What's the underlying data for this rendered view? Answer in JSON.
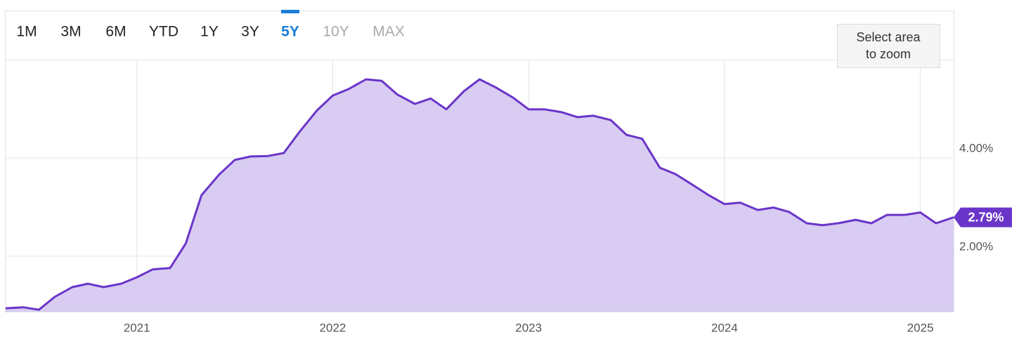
{
  "range_buttons": [
    {
      "label": "1M",
      "state": "enabled"
    },
    {
      "label": "3M",
      "state": "enabled"
    },
    {
      "label": "6M",
      "state": "enabled"
    },
    {
      "label": "YTD",
      "state": "enabled"
    },
    {
      "label": "1Y",
      "state": "enabled"
    },
    {
      "label": "3Y",
      "state": "enabled"
    },
    {
      "label": "5Y",
      "state": "selected"
    },
    {
      "label": "10Y",
      "state": "disabled"
    },
    {
      "label": "MAX",
      "state": "disabled"
    }
  ],
  "zoom_hint": [
    "Select area",
    "to zoom"
  ],
  "chart_data": {
    "type": "area",
    "x": [
      2020.33,
      2020.42,
      2020.5,
      2020.58,
      2020.67,
      2020.75,
      2020.83,
      2020.92,
      2021.0,
      2021.08,
      2021.17,
      2021.25,
      2021.33,
      2021.42,
      2021.5,
      2021.58,
      2021.67,
      2021.75,
      2021.83,
      2021.92,
      2022.0,
      2022.08,
      2022.17,
      2022.25,
      2022.33,
      2022.42,
      2022.5,
      2022.58,
      2022.67,
      2022.75,
      2022.83,
      2022.92,
      2023.0,
      2023.08,
      2023.17,
      2023.25,
      2023.33,
      2023.42,
      2023.5,
      2023.58,
      2023.67,
      2023.75,
      2023.83,
      2023.92,
      2024.0,
      2024.08,
      2024.17,
      2024.25,
      2024.33,
      2024.42,
      2024.5,
      2024.58,
      2024.67,
      2024.75,
      2024.83,
      2024.92,
      2025.0,
      2025.08,
      2025.17
    ],
    "series": [
      {
        "color": "#6a35c9",
        "fill": "#d8ccf2",
        "values": [
          0.94,
          0.96,
          0.91,
          1.17,
          1.37,
          1.44,
          1.37,
          1.44,
          1.57,
          1.73,
          1.76,
          2.26,
          3.24,
          3.66,
          3.96,
          4.03,
          4.04,
          4.1,
          4.53,
          4.97,
          5.27,
          5.4,
          5.6,
          5.57,
          5.29,
          5.1,
          5.21,
          4.99,
          5.36,
          5.6,
          5.44,
          5.23,
          4.99,
          4.99,
          4.93,
          4.83,
          4.86,
          4.77,
          4.47,
          4.39,
          3.8,
          3.67,
          3.47,
          3.24,
          3.06,
          3.09,
          2.94,
          2.99,
          2.9,
          2.67,
          2.63,
          2.67,
          2.74,
          2.67,
          2.84,
          2.84,
          2.89,
          2.67,
          2.79
        ]
      }
    ],
    "current_value_label": "2.79%",
    "xlim": [
      2020.33,
      2025.17
    ],
    "xticks": [
      2021,
      2022,
      2023,
      2024,
      2025
    ],
    "ylim": [
      0.87,
      7.0
    ],
    "yticks": [
      {
        "value": 2,
        "label": "2.00%"
      },
      {
        "value": 4,
        "label": "4.00%"
      }
    ],
    "grid": true
  }
}
